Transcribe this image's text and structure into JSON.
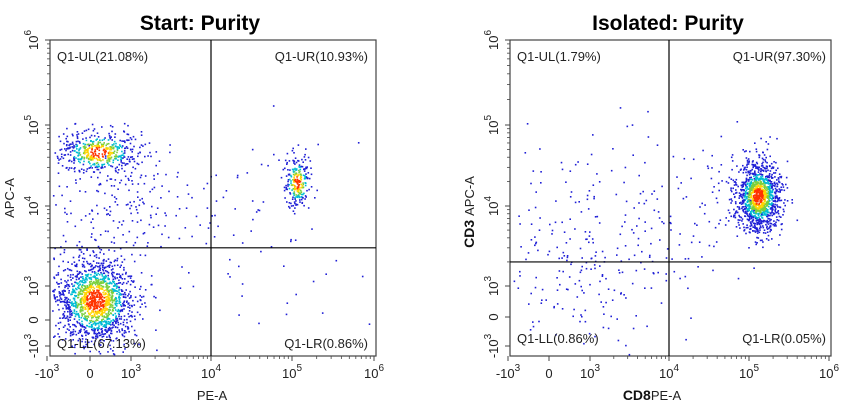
{
  "figure": {
    "layout": "two flow-cytometry density plots side by side"
  },
  "chart_data": [
    {
      "type": "scatter",
      "title": "Start:  Purity",
      "xlabel": "PE-A",
      "ylabel": "APC-A",
      "xlabel_prefix": "",
      "ylabel_prefix": "",
      "x_scale": "biexponential",
      "y_scale": "biexponential",
      "x_ticks": [
        {
          "value": -1000,
          "base": "-10",
          "exp": "3"
        },
        {
          "value": 0,
          "base": "0",
          "exp": ""
        },
        {
          "value": 1000,
          "base": "10",
          "exp": "3"
        },
        {
          "value": 10000,
          "base": "10",
          "exp": "4"
        },
        {
          "value": 100000,
          "base": "10",
          "exp": "5"
        },
        {
          "value": 1000000,
          "base": "10",
          "exp": "6"
        }
      ],
      "y_ticks": [
        {
          "value": -1000,
          "base": "-10",
          "exp": "3"
        },
        {
          "value": 0,
          "base": "0",
          "exp": ""
        },
        {
          "value": 1000,
          "base": "10",
          "exp": "3"
        },
        {
          "value": 10000,
          "base": "10",
          "exp": "4"
        },
        {
          "value": 100000,
          "base": "10",
          "exp": "5"
        },
        {
          "value": 1000000,
          "base": "10",
          "exp": "6"
        }
      ],
      "gate": {
        "x": 10000,
        "y": 3000
      },
      "quadrants": [
        {
          "name": "Q1-UL",
          "label": "Q1-UL(21.08%)",
          "percent": 21.08,
          "position": "top-left"
        },
        {
          "name": "Q1-UR",
          "label": "Q1-UR(10.93%)",
          "percent": 10.93,
          "position": "top-right"
        },
        {
          "name": "Q1-LL",
          "label": "Q1-LL(67.13%)",
          "percent": 67.13,
          "position": "bottom-left"
        },
        {
          "name": "Q1-LR",
          "label": "Q1-LR(0.86%)",
          "percent": 0.86,
          "position": "bottom-right"
        }
      ],
      "populations": [
        {
          "center_x": 200,
          "center_y": 300,
          "share": 0.67
        },
        {
          "center_x": 200,
          "center_y": 40000,
          "share": 0.21
        },
        {
          "center_x": 150000,
          "center_y": 20000,
          "share": 0.11
        }
      ]
    },
    {
      "type": "scatter",
      "title": "Isolated:  Purity",
      "xlabel": "PE-A",
      "ylabel": "APC-A",
      "xlabel_prefix": "CD8",
      "ylabel_prefix": "CD3",
      "x_scale": "biexponential",
      "y_scale": "biexponential",
      "x_ticks": [
        {
          "value": -1000,
          "base": "-10",
          "exp": "3"
        },
        {
          "value": 0,
          "base": "0",
          "exp": ""
        },
        {
          "value": 1000,
          "base": "10",
          "exp": "3"
        },
        {
          "value": 10000,
          "base": "10",
          "exp": "4"
        },
        {
          "value": 100000,
          "base": "10",
          "exp": "5"
        },
        {
          "value": 1000000,
          "base": "10",
          "exp": "6"
        }
      ],
      "y_ticks": [
        {
          "value": -1000,
          "base": "-10",
          "exp": "3"
        },
        {
          "value": 0,
          "base": "0",
          "exp": ""
        },
        {
          "value": 1000,
          "base": "10",
          "exp": "3"
        },
        {
          "value": 10000,
          "base": "10",
          "exp": "4"
        },
        {
          "value": 100000,
          "base": "10",
          "exp": "5"
        },
        {
          "value": 1000000,
          "base": "10",
          "exp": "6"
        }
      ],
      "gate": {
        "x": 10000,
        "y": 2000
      },
      "quadrants": [
        {
          "name": "Q1-UL",
          "label": "Q1-UL(1.79%)",
          "percent": 1.79,
          "position": "top-left"
        },
        {
          "name": "Q1-UR",
          "label": "Q1-UR(97.30%)",
          "percent": 97.3,
          "position": "top-right"
        },
        {
          "name": "Q1-LL",
          "label": "Q1-LL(0.86%)",
          "percent": 0.86,
          "position": "bottom-left"
        },
        {
          "name": "Q1-LR",
          "label": "Q1-LR(0.05%)",
          "percent": 0.05,
          "position": "bottom-right"
        }
      ],
      "populations": [
        {
          "center_x": 130000,
          "center_y": 15000,
          "share": 0.97
        }
      ]
    }
  ],
  "colors": {
    "density_low": "#1f1fd6",
    "density_mid_low": "#00bcd4",
    "density_mid": "#7ad03c",
    "density_mid_high": "#ffd400",
    "density_high": "#ff3300",
    "gate_line": "#000000",
    "frame": "#444444"
  }
}
